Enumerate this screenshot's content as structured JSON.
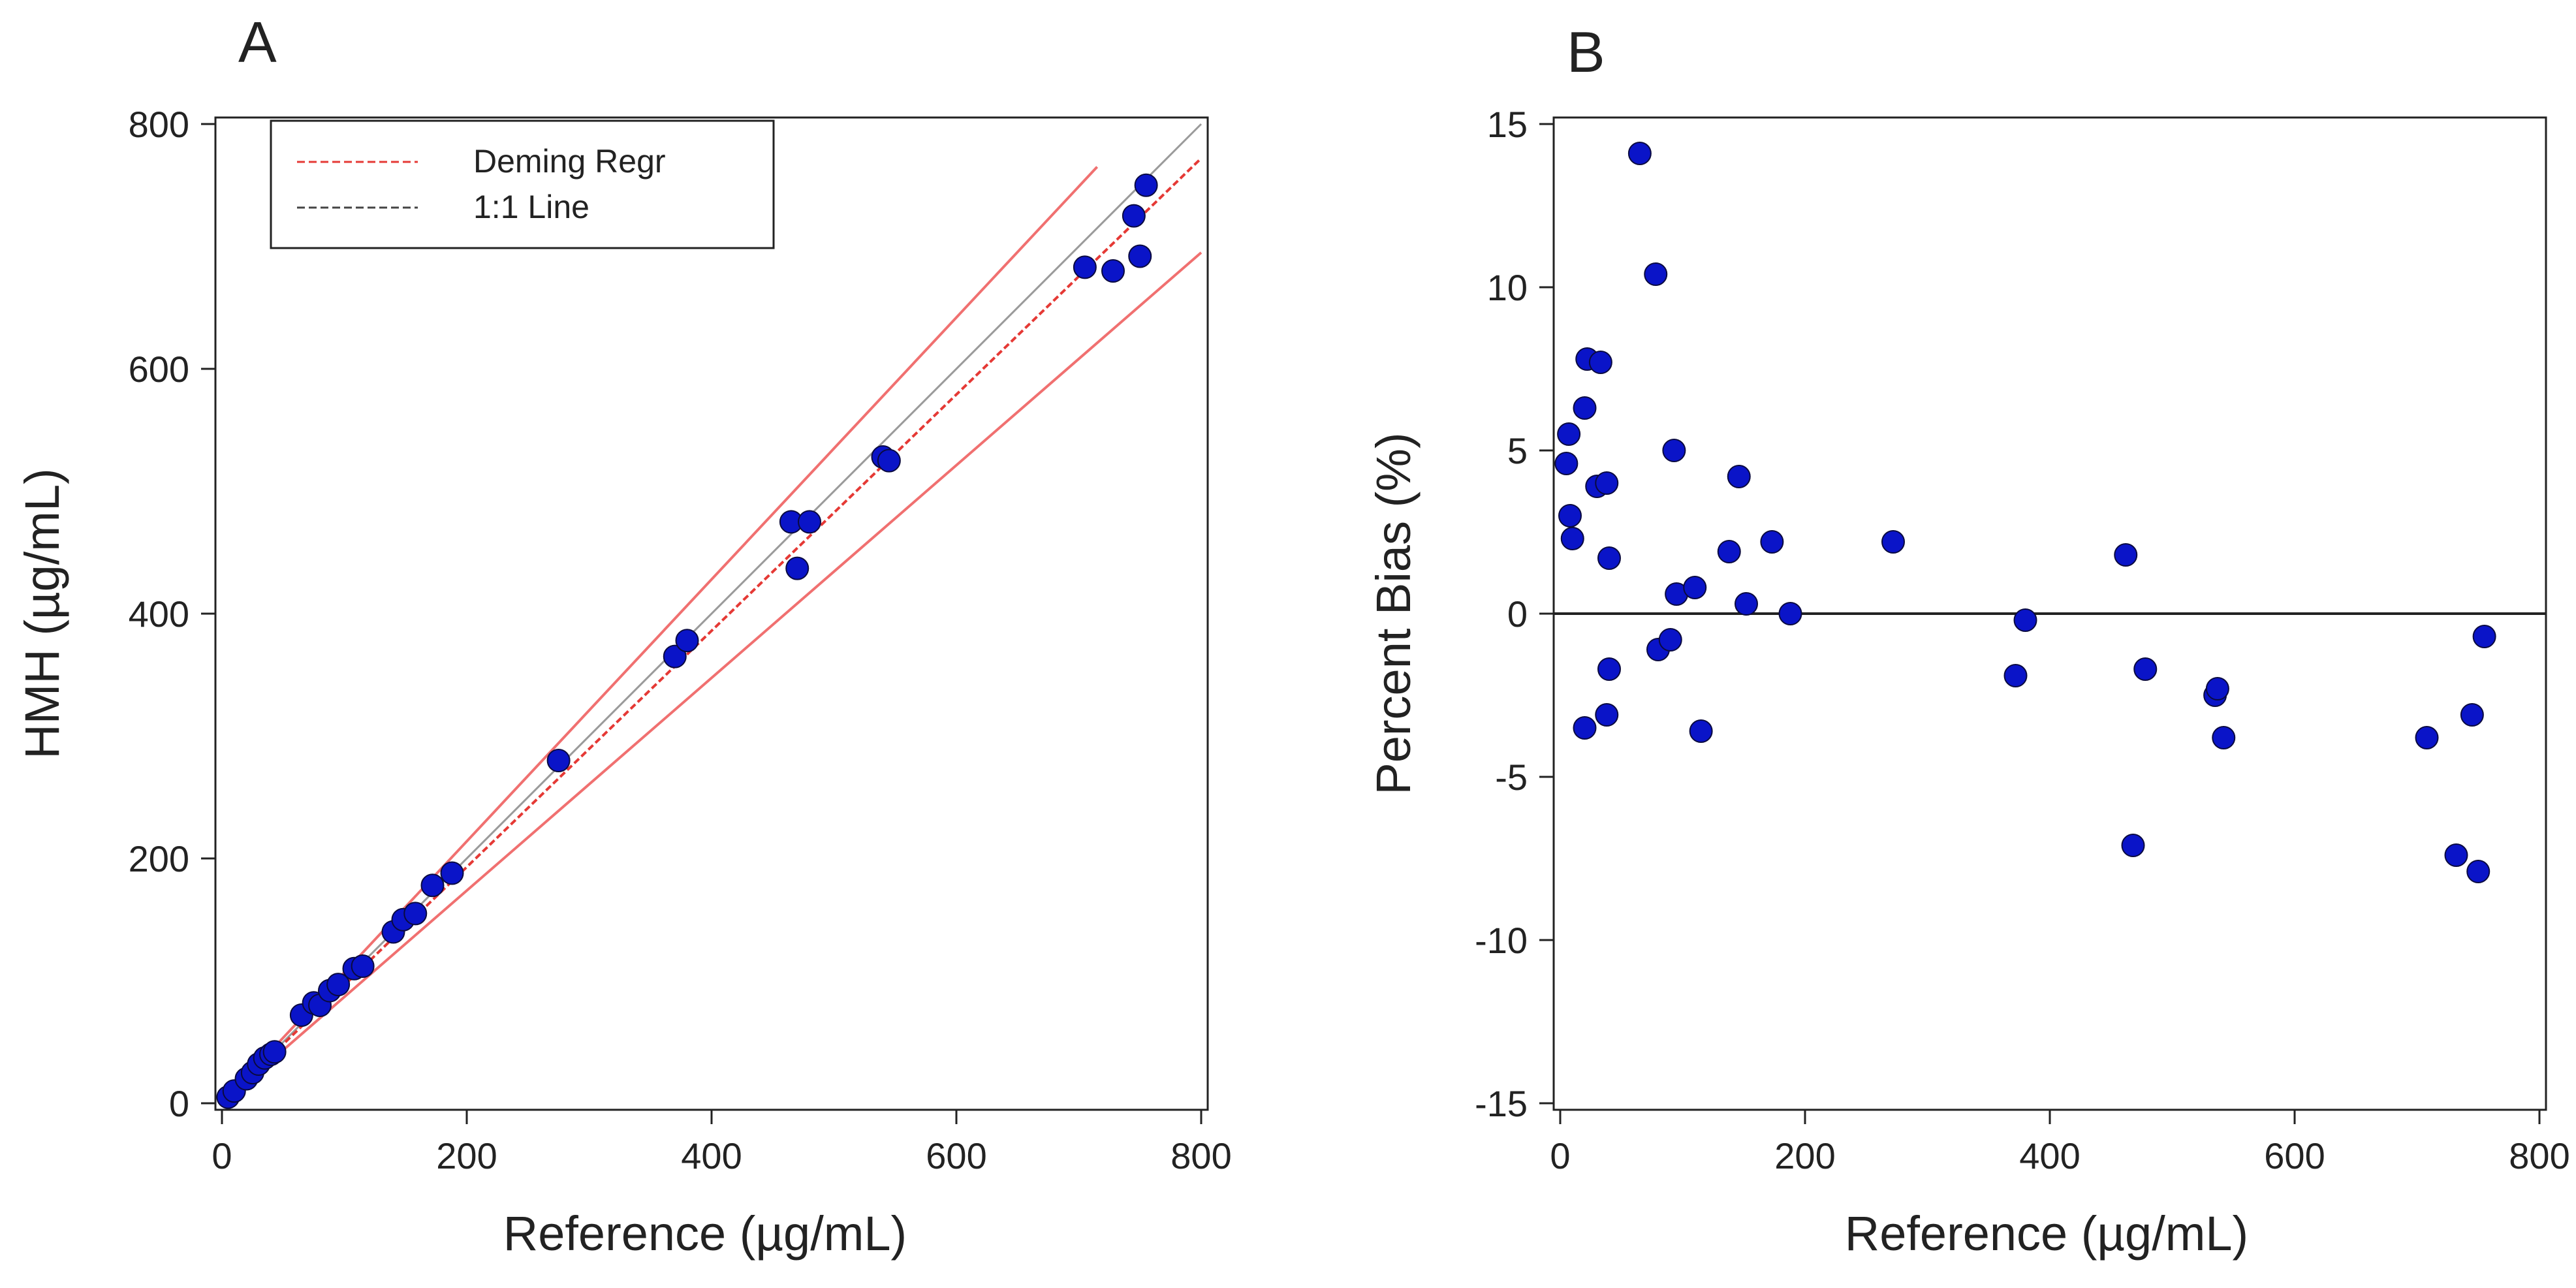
{
  "chart_data": [
    {
      "panel": "A",
      "type": "scatter",
      "xlabel": "Reference (µg/mL)",
      "ylabel": "HMH (µg/mL)",
      "xlim": [
        0,
        800
      ],
      "ylim": [
        0,
        800
      ],
      "xticks": [
        0,
        200,
        400,
        600,
        800
      ],
      "yticks": [
        0,
        200,
        400,
        600,
        800
      ],
      "tick_labels_x": [
        "0",
        "200",
        "400",
        "600",
        "800"
      ],
      "tick_labels_y": [
        "0",
        "200",
        "400",
        "600",
        "800"
      ],
      "grid": false,
      "legend_position": "top-left",
      "legend": [
        {
          "label": "Deming Regr",
          "color": "#e53935",
          "style": "dashed"
        },
        {
          "label": "1:1 Line",
          "color": "#444444",
          "style": "dashed"
        }
      ],
      "lines": [
        {
          "name": "1:1 Line",
          "color": "#9a9a9a",
          "points": [
            [
              0,
              0
            ],
            [
              800,
              800
            ]
          ]
        },
        {
          "name": "Deming Regr",
          "color": "#e53935",
          "points": [
            [
              0,
              0
            ],
            [
              800,
              772
            ]
          ]
        },
        {
          "name": "upper limit",
          "color": "#f07070",
          "points": [
            [
              0,
              0
            ],
            [
              715,
              765
            ]
          ]
        },
        {
          "name": "lower limit",
          "color": "#f07070",
          "points": [
            [
              0,
              0
            ],
            [
              800,
              695
            ]
          ]
        }
      ],
      "points": [
        [
          5,
          5
        ],
        [
          10,
          10
        ],
        [
          20,
          20
        ],
        [
          25,
          25
        ],
        [
          30,
          32
        ],
        [
          35,
          37
        ],
        [
          40,
          40
        ],
        [
          43,
          42
        ],
        [
          65,
          72
        ],
        [
          75,
          82
        ],
        [
          80,
          80
        ],
        [
          88,
          92
        ],
        [
          95,
          97
        ],
        [
          108,
          110
        ],
        [
          115,
          112
        ],
        [
          140,
          140
        ],
        [
          148,
          150
        ],
        [
          158,
          155
        ],
        [
          172,
          178
        ],
        [
          188,
          188
        ],
        [
          275,
          280
        ],
        [
          370,
          365
        ],
        [
          380,
          378
        ],
        [
          465,
          475
        ],
        [
          470,
          437
        ],
        [
          480,
          475
        ],
        [
          540,
          528
        ],
        [
          545,
          525
        ],
        [
          705,
          683
        ],
        [
          728,
          680
        ],
        [
          745,
          725
        ],
        [
          750,
          692
        ],
        [
          755,
          750
        ]
      ],
      "point_color": "#0a14c8"
    },
    {
      "panel": "B",
      "type": "scatter",
      "xlabel": "Reference (µg/mL)",
      "ylabel": "Percent Bias (%)",
      "xlim": [
        0,
        800
      ],
      "ylim": [
        -15,
        15
      ],
      "xticks": [
        0,
        200,
        400,
        600,
        800
      ],
      "yticks": [
        15,
        10,
        5,
        0,
        -5,
        -10,
        -15
      ],
      "tick_labels_x": [
        "0",
        "200",
        "400",
        "600",
        "800"
      ],
      "tick_labels_y": [
        "15",
        "10",
        "5",
        "0",
        "-5",
        "-10",
        "-15"
      ],
      "grid": false,
      "reference_line_y": 0,
      "points": [
        [
          5,
          4.6
        ],
        [
          7,
          5.5
        ],
        [
          8,
          3.0
        ],
        [
          10,
          2.3
        ],
        [
          20,
          6.3
        ],
        [
          20,
          -3.5
        ],
        [
          22,
          7.8
        ],
        [
          30,
          3.9
        ],
        [
          33,
          7.7
        ],
        [
          38,
          4.0
        ],
        [
          40,
          1.7
        ],
        [
          40,
          -1.7
        ],
        [
          38,
          -3.1
        ],
        [
          65,
          14.1
        ],
        [
          78,
          10.4
        ],
        [
          80,
          -1.1
        ],
        [
          90,
          -0.8
        ],
        [
          93,
          5.0
        ],
        [
          95,
          0.6
        ],
        [
          110,
          0.8
        ],
        [
          115,
          -3.6
        ],
        [
          138,
          1.9
        ],
        [
          146,
          4.2
        ],
        [
          152,
          0.3
        ],
        [
          173,
          2.2
        ],
        [
          188,
          0.0
        ],
        [
          272,
          2.2
        ],
        [
          372,
          -1.9
        ],
        [
          380,
          -0.2
        ],
        [
          462,
          1.8
        ],
        [
          468,
          -7.1
        ],
        [
          478,
          -1.7
        ],
        [
          535,
          -2.5
        ],
        [
          537,
          -2.3
        ],
        [
          542,
          -3.8
        ],
        [
          708,
          -3.8
        ],
        [
          732,
          -7.4
        ],
        [
          745,
          -3.1
        ],
        [
          750,
          -7.9
        ],
        [
          755,
          -0.7
        ]
      ],
      "point_color": "#0a14c8"
    }
  ]
}
